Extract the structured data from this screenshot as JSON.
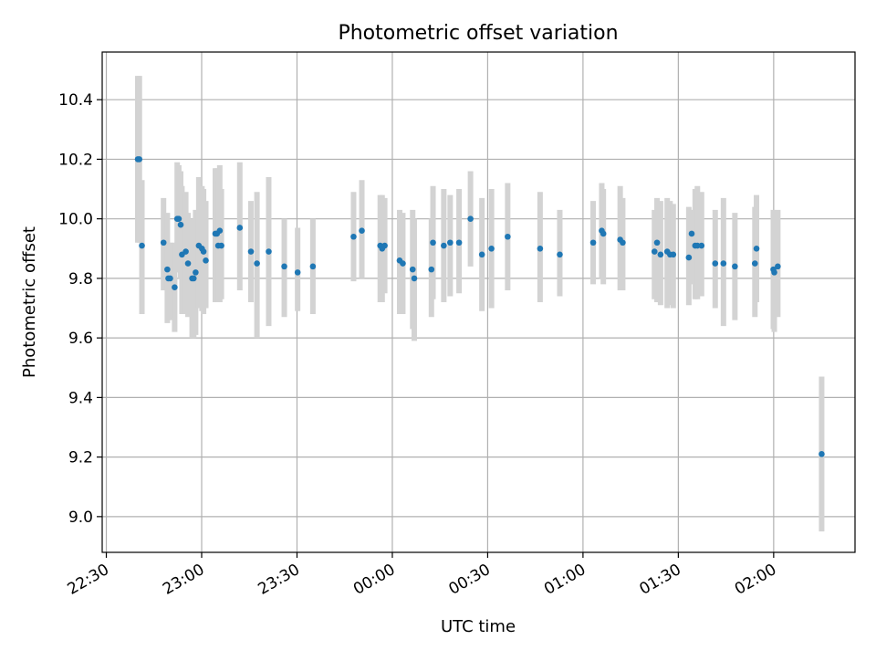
{
  "chart_data": {
    "type": "scatter",
    "title": "Photometric offset variation",
    "xlabel": "UTC time",
    "ylabel": "Photometric offset",
    "x_ticks": [
      "22:30",
      "23:00",
      "23:30",
      "00:00",
      "00:30",
      "01:00",
      "01:30",
      "02:00"
    ],
    "x_tick_minutes": [
      -90,
      -60,
      -30,
      0,
      30,
      60,
      90,
      120
    ],
    "xlim_minutes": [
      -91.3,
      145.6
    ],
    "y_ticks": [
      "9.0",
      "9.2",
      "9.4",
      "9.6",
      "9.8",
      "10.0",
      "10.2",
      "10.4"
    ],
    "y_tick_values": [
      9.0,
      9.2,
      9.4,
      9.6,
      9.8,
      10.0,
      10.2,
      10.4
    ],
    "ylim": [
      8.88,
      10.56
    ],
    "grid": true,
    "point_color": "#1f77b4",
    "errorbar_color": "#d3d3d3",
    "points": [
      {
        "t": -80.1,
        "y": 10.2,
        "lo": 9.92,
        "hi": 10.48
      },
      {
        "t": -79.6,
        "y": 10.2,
        "lo": 9.92,
        "hi": 10.48
      },
      {
        "t": -78.8,
        "y": 9.91,
        "lo": 9.68,
        "hi": 10.13
      },
      {
        "t": -72.0,
        "y": 9.92,
        "lo": 9.76,
        "hi": 10.07
      },
      {
        "t": -70.8,
        "y": 9.83,
        "lo": 9.65,
        "hi": 10.02
      },
      {
        "t": -70.5,
        "y": 9.8,
        "lo": 9.66,
        "hi": 9.92
      },
      {
        "t": -69.9,
        "y": 9.8,
        "lo": 9.66,
        "hi": 9.92
      },
      {
        "t": -68.5,
        "y": 9.77,
        "lo": 9.62,
        "hi": 9.92
      },
      {
        "t": -67.7,
        "y": 10.0,
        "lo": 9.82,
        "hi": 10.19
      },
      {
        "t": -67.2,
        "y": 10.0,
        "lo": 9.82,
        "hi": 10.18
      },
      {
        "t": -66.6,
        "y": 9.98,
        "lo": 9.8,
        "hi": 10.16
      },
      {
        "t": -66.2,
        "y": 9.88,
        "lo": 9.68,
        "hi": 10.11
      },
      {
        "t": -65.0,
        "y": 9.89,
        "lo": 9.68,
        "hi": 10.09
      },
      {
        "t": -64.3,
        "y": 9.85,
        "lo": 9.67,
        "hi": 10.02
      },
      {
        "t": -63.0,
        "y": 9.8,
        "lo": 9.6,
        "hi": 10.0
      },
      {
        "t": -62.5,
        "y": 9.8,
        "lo": 9.6,
        "hi": 10.0
      },
      {
        "t": -61.9,
        "y": 9.82,
        "lo": 9.61,
        "hi": 10.03
      },
      {
        "t": -60.9,
        "y": 9.91,
        "lo": 9.7,
        "hi": 10.14
      },
      {
        "t": -59.9,
        "y": 9.9,
        "lo": 9.69,
        "hi": 10.11
      },
      {
        "t": -59.4,
        "y": 9.89,
        "lo": 9.68,
        "hi": 10.1
      },
      {
        "t": -58.7,
        "y": 9.86,
        "lo": 9.7,
        "hi": 10.06
      },
      {
        "t": -55.7,
        "y": 9.95,
        "lo": 9.72,
        "hi": 10.17
      },
      {
        "t": -55.2,
        "y": 9.95,
        "lo": 9.72,
        "hi": 10.17
      },
      {
        "t": -54.8,
        "y": 9.91,
        "lo": 9.72,
        "hi": 10.13
      },
      {
        "t": -54.3,
        "y": 9.96,
        "lo": 9.72,
        "hi": 10.18
      },
      {
        "t": -53.8,
        "y": 9.91,
        "lo": 9.73,
        "hi": 10.1
      },
      {
        "t": -48.0,
        "y": 9.97,
        "lo": 9.76,
        "hi": 10.19
      },
      {
        "t": -44.5,
        "y": 9.89,
        "lo": 9.72,
        "hi": 10.06
      },
      {
        "t": -42.6,
        "y": 9.85,
        "lo": 9.6,
        "hi": 10.09
      },
      {
        "t": -38.9,
        "y": 9.89,
        "lo": 9.64,
        "hi": 10.14
      },
      {
        "t": -34.0,
        "y": 9.84,
        "lo": 9.67,
        "hi": 10.0
      },
      {
        "t": -29.8,
        "y": 9.82,
        "lo": 9.69,
        "hi": 9.97
      },
      {
        "t": -25.0,
        "y": 9.84,
        "lo": 9.68,
        "hi": 10.0
      },
      {
        "t": -12.2,
        "y": 9.94,
        "lo": 9.79,
        "hi": 10.09
      },
      {
        "t": -9.6,
        "y": 9.96,
        "lo": 9.8,
        "hi": 10.13
      },
      {
        "t": -3.8,
        "y": 9.91,
        "lo": 9.72,
        "hi": 10.08
      },
      {
        "t": -3.2,
        "y": 9.9,
        "lo": 9.72,
        "hi": 10.08
      },
      {
        "t": -2.4,
        "y": 9.91,
        "lo": 9.75,
        "hi": 10.07
      },
      {
        "t": 2.3,
        "y": 9.86,
        "lo": 9.68,
        "hi": 10.03
      },
      {
        "t": 3.3,
        "y": 9.85,
        "lo": 9.68,
        "hi": 10.02
      },
      {
        "t": 6.4,
        "y": 9.83,
        "lo": 9.63,
        "hi": 10.03
      },
      {
        "t": 6.9,
        "y": 9.8,
        "lo": 9.59,
        "hi": 10.0
      },
      {
        "t": 12.3,
        "y": 9.83,
        "lo": 9.67,
        "hi": 10.0
      },
      {
        "t": 12.8,
        "y": 9.92,
        "lo": 9.73,
        "hi": 10.11
      },
      {
        "t": 16.2,
        "y": 9.91,
        "lo": 9.72,
        "hi": 10.1
      },
      {
        "t": 18.2,
        "y": 9.92,
        "lo": 9.74,
        "hi": 10.08
      },
      {
        "t": 21.0,
        "y": 9.92,
        "lo": 9.75,
        "hi": 10.1
      },
      {
        "t": 24.6,
        "y": 10.0,
        "lo": 9.84,
        "hi": 10.16
      },
      {
        "t": 28.2,
        "y": 9.88,
        "lo": 9.69,
        "hi": 10.07
      },
      {
        "t": 31.2,
        "y": 9.9,
        "lo": 9.7,
        "hi": 10.1
      },
      {
        "t": 36.3,
        "y": 9.94,
        "lo": 9.76,
        "hi": 10.12
      },
      {
        "t": 46.5,
        "y": 9.9,
        "lo": 9.72,
        "hi": 10.09
      },
      {
        "t": 52.7,
        "y": 9.88,
        "lo": 9.74,
        "hi": 10.03
      },
      {
        "t": 63.2,
        "y": 9.92,
        "lo": 9.78,
        "hi": 10.06
      },
      {
        "t": 65.9,
        "y": 9.96,
        "lo": 9.8,
        "hi": 10.12
      },
      {
        "t": 66.4,
        "y": 9.95,
        "lo": 9.78,
        "hi": 10.1
      },
      {
        "t": 71.7,
        "y": 9.93,
        "lo": 9.76,
        "hi": 10.11
      },
      {
        "t": 72.5,
        "y": 9.92,
        "lo": 9.76,
        "hi": 10.07
      },
      {
        "t": 82.5,
        "y": 9.89,
        "lo": 9.73,
        "hi": 10.03
      },
      {
        "t": 83.3,
        "y": 9.92,
        "lo": 9.72,
        "hi": 10.07
      },
      {
        "t": 84.4,
        "y": 9.88,
        "lo": 9.71,
        "hi": 10.06
      },
      {
        "t": 86.5,
        "y": 9.89,
        "lo": 9.7,
        "hi": 10.07
      },
      {
        "t": 87.4,
        "y": 9.88,
        "lo": 9.71,
        "hi": 10.06
      },
      {
        "t": 88.4,
        "y": 9.88,
        "lo": 9.7,
        "hi": 10.05
      },
      {
        "t": 93.3,
        "y": 9.87,
        "lo": 9.71,
        "hi": 10.04
      },
      {
        "t": 94.2,
        "y": 9.95,
        "lo": 9.78,
        "hi": 10.03
      },
      {
        "t": 95.3,
        "y": 9.91,
        "lo": 9.73,
        "hi": 10.1
      },
      {
        "t": 96.0,
        "y": 9.91,
        "lo": 9.73,
        "hi": 10.11
      },
      {
        "t": 97.3,
        "y": 9.91,
        "lo": 9.74,
        "hi": 10.09
      },
      {
        "t": 101.6,
        "y": 9.85,
        "lo": 9.7,
        "hi": 10.03
      },
      {
        "t": 104.2,
        "y": 9.85,
        "lo": 9.64,
        "hi": 10.07
      },
      {
        "t": 107.8,
        "y": 9.84,
        "lo": 9.66,
        "hi": 10.02
      },
      {
        "t": 114.1,
        "y": 9.85,
        "lo": 9.67,
        "hi": 10.04
      },
      {
        "t": 114.6,
        "y": 9.9,
        "lo": 9.72,
        "hi": 10.08
      },
      {
        "t": 119.9,
        "y": 9.83,
        "lo": 9.63,
        "hi": 10.03
      },
      {
        "t": 120.2,
        "y": 9.82,
        "lo": 9.62,
        "hi": 10.02
      },
      {
        "t": 121.3,
        "y": 9.84,
        "lo": 9.67,
        "hi": 10.03
      },
      {
        "t": 135.1,
        "y": 9.21,
        "lo": 8.95,
        "hi": 9.47
      }
    ]
  }
}
